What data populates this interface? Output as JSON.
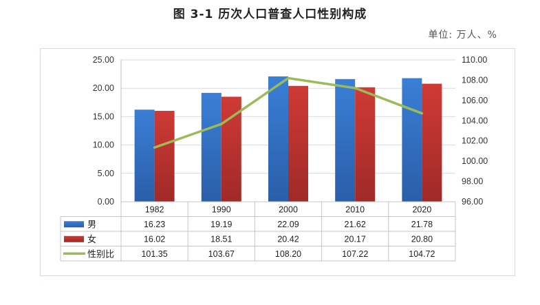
{
  "title": "图 3-1  历次人口普查人口性别构成",
  "unit_label": "单位: 万人、%",
  "colors": {
    "male": "#2f6fc9",
    "female": "#c0332f",
    "ratio_line": "#9bbb59",
    "grid": "#d9d9d9"
  },
  "chart_data": {
    "type": "bar",
    "categories": [
      "1982",
      "1990",
      "2000",
      "2010",
      "2020"
    ],
    "series": [
      {
        "name": "男",
        "type": "bar",
        "axis": "left",
        "values": [
          16.23,
          19.19,
          22.09,
          21.62,
          21.78
        ]
      },
      {
        "name": "女",
        "type": "bar",
        "axis": "left",
        "values": [
          16.02,
          18.51,
          20.42,
          20.17,
          20.8
        ]
      },
      {
        "name": "性别比",
        "type": "line",
        "axis": "right",
        "values": [
          101.35,
          103.67,
          108.2,
          107.22,
          104.72
        ]
      }
    ],
    "value_labels": {
      "男": [
        "16.23",
        "19.19",
        "22.09",
        "21.62",
        "21.78"
      ],
      "女": [
        "16.02",
        "18.51",
        "20.42",
        "20.17",
        "20.80"
      ],
      "性别比": [
        "101.35",
        "103.67",
        "108.20",
        "107.22",
        "104.72"
      ]
    },
    "ylim_left": [
      0,
      25
    ],
    "yticks_left": [
      "0.00",
      "5.00",
      "10.00",
      "15.00",
      "20.00",
      "25.00"
    ],
    "ylim_right": [
      96,
      110
    ],
    "yticks_right": [
      "96.00",
      "98.00",
      "100.00",
      "102.00",
      "104.00",
      "106.00",
      "108.00",
      "110.00"
    ],
    "grid": true,
    "legend": "data-table-bottom"
  }
}
